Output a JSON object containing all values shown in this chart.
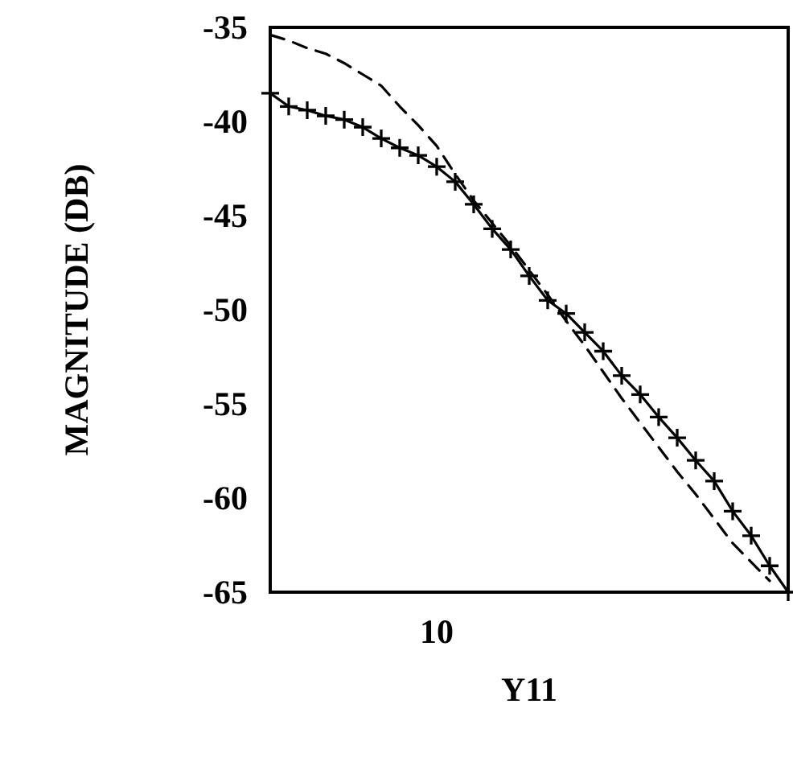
{
  "chart_data": {
    "type": "line",
    "xlabel": "Y11",
    "ylabel": "MAGNITUDE (DB)",
    "categories": [
      null,
      null,
      null,
      null,
      null,
      null,
      null,
      null,
      null,
      "10",
      null,
      null,
      null,
      null,
      null,
      null,
      null,
      null,
      null,
      null,
      null,
      null,
      null,
      null,
      null,
      null,
      null,
      null,
      null
    ],
    "ylim": [
      -65,
      -35
    ],
    "yticks": [
      -65,
      -60,
      -55,
      -50,
      -45,
      -40,
      -35
    ],
    "grid": false,
    "series": [
      {
        "color": "#000000",
        "marker": "cross",
        "line_style": "solid",
        "values": [
          -38.5,
          -39.2,
          -39.4,
          -39.7,
          -39.9,
          -40.3,
          -40.9,
          -41.4,
          -41.8,
          -42.4,
          -43.2,
          -44.4,
          -45.7,
          -46.8,
          -48.2,
          -49.5,
          -50.2,
          -51.2,
          -52.2,
          -53.5,
          -54.5,
          -55.7,
          -56.8,
          -58.0,
          -59.1,
          -60.7,
          -62.0,
          -63.6,
          -65.0
        ]
      },
      {
        "color": "#000000",
        "marker": "none",
        "line_style": "dashed",
        "values": [
          -35.4,
          -35.7,
          -36.1,
          -36.4,
          -36.9,
          -37.5,
          -38.1,
          -39.2,
          -40.2,
          -41.3,
          -42.8,
          -44.2,
          -45.4,
          -46.6,
          -47.9,
          -49.2,
          -50.6,
          -51.9,
          -53.3,
          -54.7,
          -56.0,
          -57.3,
          -58.6,
          -59.8,
          -61.1,
          -62.4,
          -63.4,
          -64.4,
          null
        ]
      }
    ]
  }
}
